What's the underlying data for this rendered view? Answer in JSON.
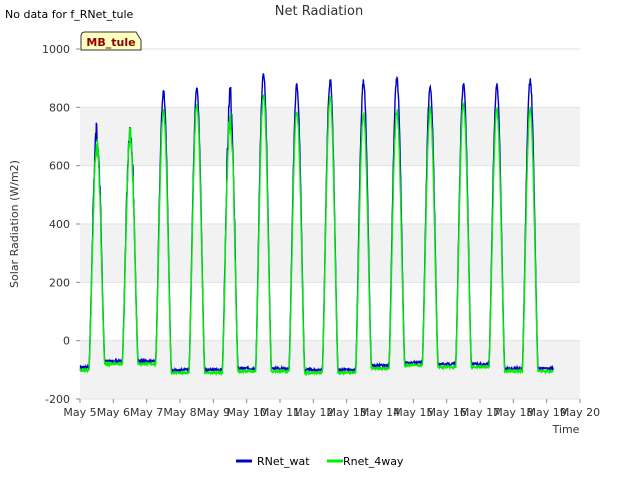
{
  "page": {
    "no_data_note": "No data for f_RNet_tule",
    "site_badge": "MB_tule"
  },
  "chart_data": {
    "type": "line",
    "title": "Net Radiation",
    "xlabel": "Time",
    "ylabel": "Solar Radiation (W/m2)",
    "xlim": [
      5,
      20
    ],
    "ylim": [
      -200,
      1000
    ],
    "x_ticks": [
      5,
      6,
      7,
      8,
      9,
      10,
      11,
      12,
      13,
      14,
      15,
      16,
      17,
      18,
      19,
      20
    ],
    "x_tick_labels": [
      "May 5",
      "May 6",
      "May 7",
      "May 8",
      "May 9",
      "May 10",
      "May 11",
      "May 12",
      "May 13",
      "May 14",
      "May 15",
      "May 16",
      "May 17",
      "May 18",
      "May 19",
      "May 20"
    ],
    "y_ticks": [
      -200,
      0,
      200,
      400,
      600,
      800,
      1000
    ],
    "y_tick_labels": [
      "-200",
      "0",
      "200",
      "400",
      "600",
      "800",
      "1000"
    ],
    "legend_position": "bottom-center",
    "series": [
      {
        "name": "RNet_wat",
        "color": "#0000cc",
        "night_values": [
          -90,
          -70,
          -70,
          -100,
          -100,
          -95,
          -95,
          -100,
          -100,
          -85,
          -75,
          -80,
          -80,
          -95,
          -95,
          -95,
          -90,
          -70
        ],
        "day_peaks": [
          [
            5.0,
            6.0,
            760
          ],
          [
            6.0,
            7.0,
            770
          ],
          [
            7.0,
            8.0,
            865
          ],
          [
            8.0,
            9.0,
            870
          ],
          [
            9.0,
            10.0,
            880
          ],
          [
            10.0,
            11.0,
            930
          ],
          [
            11.0,
            12.0,
            885
          ],
          [
            12.0,
            13.0,
            905
          ],
          [
            13.0,
            14.0,
            900
          ],
          [
            14.0,
            15.0,
            910
          ],
          [
            15.0,
            16.0,
            885
          ],
          [
            16.0,
            17.0,
            890
          ],
          [
            17.0,
            18.0,
            885
          ],
          [
            18.0,
            19.0,
            905
          ]
        ]
      },
      {
        "name": "Rnet_4way",
        "color": "#00ee00",
        "night_values": [
          -100,
          -80,
          -80,
          -110,
          -110,
          -105,
          -105,
          -110,
          -110,
          -95,
          -85,
          -90,
          -90,
          -105,
          -105,
          -105,
          -100,
          -85
        ],
        "day_peaks": [
          [
            5.0,
            6.0,
            705
          ],
          [
            6.0,
            7.0,
            740
          ],
          [
            7.0,
            8.0,
            800
          ],
          [
            8.0,
            9.0,
            820
          ],
          [
            9.0,
            10.0,
            815
          ],
          [
            10.0,
            11.0,
            860
          ],
          [
            11.0,
            12.0,
            800
          ],
          [
            12.0,
            13.0,
            850
          ],
          [
            13.0,
            14.0,
            790
          ],
          [
            14.0,
            15.0,
            800
          ],
          [
            15.0,
            16.0,
            805
          ],
          [
            16.0,
            17.0,
            825
          ],
          [
            17.0,
            18.0,
            805
          ],
          [
            18.0,
            19.0,
            805
          ]
        ]
      }
    ]
  }
}
